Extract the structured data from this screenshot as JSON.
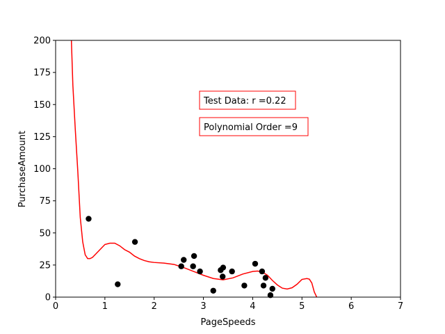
{
  "chart_data": {
    "type": "scatter",
    "title": "",
    "xlabel": "PageSpeeds",
    "ylabel": "PurchaseAmount",
    "xlim": [
      0,
      7
    ],
    "ylim": [
      0,
      200
    ],
    "xticks": [
      "0",
      "1",
      "2",
      "3",
      "4",
      "5",
      "6",
      "7"
    ],
    "yticks": [
      "0",
      "25",
      "50",
      "75",
      "100",
      "125",
      "150",
      "175",
      "200"
    ],
    "grid": false,
    "annotations": [
      "Test Data: r =0.22",
      "Polynomial Order =9"
    ],
    "colors": {
      "points": "#000000",
      "fit": "#ff0000",
      "annotation_border": "#ff0000"
    },
    "series": [
      {
        "kind": "scatter",
        "x": [
          0.67,
          1.26,
          1.61,
          2.55,
          2.6,
          2.79,
          2.81,
          2.93,
          3.2,
          3.35,
          3.39,
          3.4,
          3.58,
          3.83,
          4.05,
          4.19,
          4.22,
          4.26,
          4.36,
          4.4
        ],
        "y": [
          61,
          10,
          43,
          24,
          29,
          24,
          32,
          20,
          5,
          21,
          16,
          23,
          20,
          9,
          26,
          20,
          9,
          15,
          1.5,
          6.5
        ]
      },
      {
        "kind": "line",
        "x": [
          0.32,
          0.35,
          0.4,
          0.45,
          0.5,
          0.55,
          0.6,
          0.65,
          0.7,
          0.75,
          0.8,
          0.9,
          1.0,
          1.1,
          1.2,
          1.3,
          1.4,
          1.5,
          1.6,
          1.7,
          1.8,
          1.9,
          2.0,
          2.2,
          2.4,
          2.6,
          2.8,
          3.0,
          3.2,
          3.4,
          3.6,
          3.8,
          4.0,
          4.1,
          4.2,
          4.3,
          4.4,
          4.5,
          4.6,
          4.7,
          4.8,
          4.9,
          5.0,
          5.1,
          5.15,
          5.2,
          5.25,
          5.3
        ],
        "y": [
          200,
          165,
          130,
          98,
          62,
          43,
          33,
          30,
          30,
          31,
          33,
          37,
          41,
          42,
          42,
          40,
          37,
          35,
          32,
          30,
          28.5,
          27.5,
          27,
          26.5,
          25.5,
          23,
          20,
          17,
          14.5,
          13.5,
          15,
          18,
          20,
          20.3,
          19.5,
          17,
          13,
          9.5,
          7,
          6.3,
          7.3,
          10,
          13.8,
          14.5,
          14,
          11,
          4,
          0
        ]
      }
    ]
  }
}
